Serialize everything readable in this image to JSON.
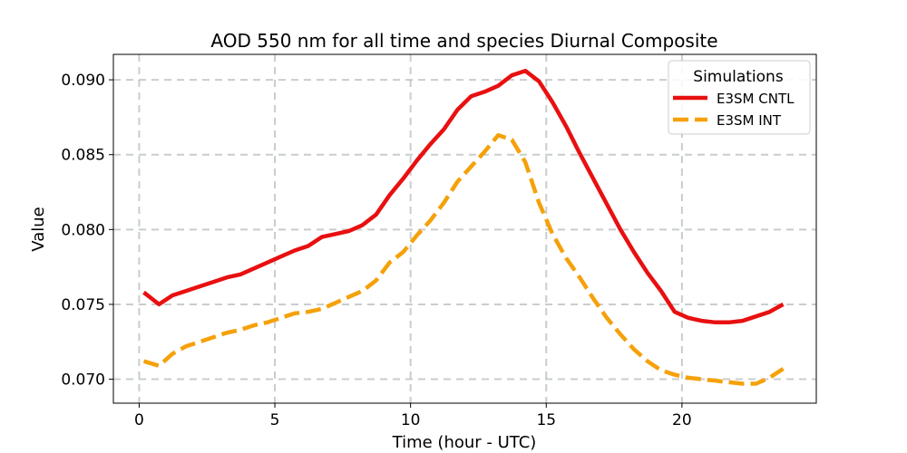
{
  "chart_data": {
    "type": "line",
    "title": "AOD 550 nm for all time and species Diurnal Composite",
    "xlabel": "Time (hour - UTC)",
    "ylabel": "Value",
    "xlim": [
      -0.95,
      24.95
    ],
    "ylim": [
      0.0684,
      0.0917
    ],
    "xticks": [
      0,
      5,
      10,
      15,
      20
    ],
    "xtick_labels": [
      "0",
      "5",
      "10",
      "15",
      "20"
    ],
    "yticks": [
      0.07,
      0.075,
      0.08,
      0.085,
      0.09
    ],
    "ytick_labels": [
      "0.070",
      "0.075",
      "0.080",
      "0.085",
      "0.090"
    ],
    "grid": true,
    "legend": {
      "title": "Simulations",
      "placement": "top-right"
    },
    "x": [
      0.17,
      0.73,
      1.23,
      1.73,
      2.23,
      2.73,
      3.23,
      3.73,
      4.23,
      4.73,
      5.23,
      5.73,
      6.23,
      6.73,
      7.23,
      7.73,
      8.23,
      8.73,
      9.23,
      9.73,
      10.23,
      10.73,
      11.23,
      11.73,
      12.23,
      12.73,
      13.23,
      13.73,
      14.23,
      14.73,
      15.23,
      15.73,
      16.23,
      16.73,
      17.23,
      17.73,
      18.23,
      18.73,
      19.23,
      19.73,
      20.23,
      20.73,
      21.23,
      21.73,
      22.23,
      22.73,
      23.23,
      23.73
    ],
    "series": [
      {
        "name": "E3SM CNTL",
        "color": "#e81010",
        "dash": "solid",
        "values": [
          0.0758,
          0.075,
          0.0756,
          0.0759,
          0.0762,
          0.0765,
          0.0768,
          0.077,
          0.0774,
          0.0778,
          0.0782,
          0.0786,
          0.0789,
          0.0795,
          0.0797,
          0.0799,
          0.0803,
          0.081,
          0.0823,
          0.0834,
          0.0846,
          0.0857,
          0.0867,
          0.088,
          0.0889,
          0.0892,
          0.0896,
          0.0903,
          0.0906,
          0.0899,
          0.0885,
          0.0869,
          0.0851,
          0.0834,
          0.0817,
          0.08,
          0.0785,
          0.0771,
          0.0759,
          0.0745,
          0.0741,
          0.0739,
          0.0738,
          0.0738,
          0.0739,
          0.0742,
          0.0745,
          0.075
        ]
      },
      {
        "name": "E3SM INT",
        "color": "#f5a10a",
        "dash": "dashed",
        "values": [
          0.0712,
          0.0709,
          0.0717,
          0.0722,
          0.0725,
          0.0728,
          0.0731,
          0.0733,
          0.0736,
          0.0738,
          0.0741,
          0.0744,
          0.0745,
          0.0747,
          0.0751,
          0.0755,
          0.0759,
          0.0766,
          0.0778,
          0.0785,
          0.0796,
          0.0806,
          0.0818,
          0.0832,
          0.0842,
          0.0852,
          0.0863,
          0.086,
          0.0845,
          0.0818,
          0.0797,
          0.0781,
          0.0768,
          0.0754,
          0.0741,
          0.073,
          0.072,
          0.0712,
          0.0706,
          0.0703,
          0.0701,
          0.07,
          0.0699,
          0.0698,
          0.0697,
          0.0697,
          0.0701,
          0.0707
        ]
      }
    ]
  }
}
